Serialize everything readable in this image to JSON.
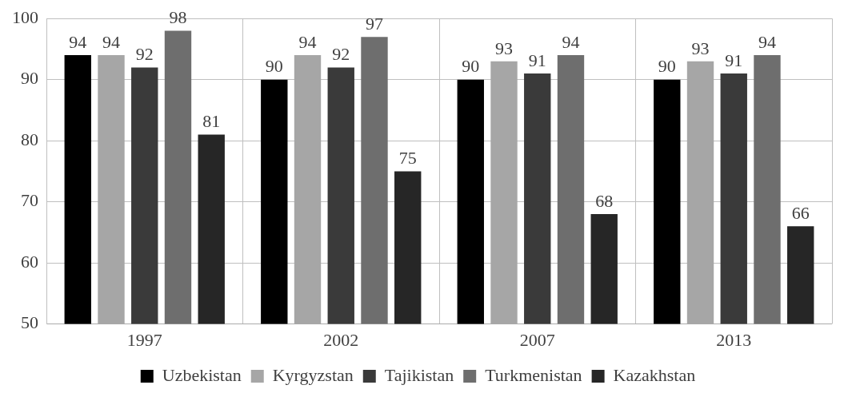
{
  "chart_data": {
    "type": "bar",
    "categories": [
      "1997",
      "2002",
      "2007",
      "2013"
    ],
    "series": [
      {
        "name": "Uzbekistan",
        "color": "#000000",
        "values": [
          94,
          90,
          90,
          90
        ]
      },
      {
        "name": "Kyrgyzstan",
        "color": "#a6a6a6",
        "values": [
          94,
          94,
          93,
          93
        ]
      },
      {
        "name": "Tajikistan",
        "color": "#3a3a3a",
        "values": [
          92,
          92,
          91,
          91
        ]
      },
      {
        "name": "Turkmenistan",
        "color": "#6e6e6e",
        "values": [
          98,
          97,
          94,
          94
        ]
      },
      {
        "name": "Kazakhstan",
        "color": "#262626",
        "values": [
          81,
          75,
          68,
          66
        ]
      }
    ],
    "ylim": [
      50,
      100
    ],
    "yticks": [
      50,
      60,
      70,
      80,
      90,
      100
    ],
    "grid": true,
    "legend": "bottom",
    "data_labels": true
  }
}
